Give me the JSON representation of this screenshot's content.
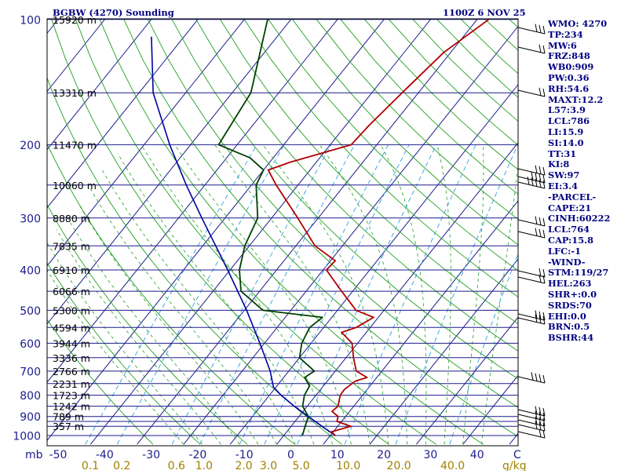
{
  "header": {
    "title": "BGBW (4270) Sounding",
    "time": "1100Z  6 NOV 25"
  },
  "sidebar": {
    "lines": [
      "WMO: 4270",
      "TP:234",
      "MW:6",
      "FRZ:848",
      "WB0:909",
      "PW:0.36",
      "RH:54.6",
      "MAXT:12.2",
      "L57:3.9",
      "LCL:786",
      "LI:15.9",
      "SI:14.0",
      "TT:31",
      "KI:8",
      "SW:97",
      "EI:3.4",
      "-PARCEL-",
      "CAPE:21",
      "CINH:60222",
      "LCL:764",
      "CAP:15.8",
      "LFC:-1",
      "-WIND-",
      "STM:119/27",
      "HEL:263",
      "SHR+:0.0",
      "SRDS:70",
      "EHI:0.0",
      "BRN:0.5",
      "BSHR:44"
    ]
  },
  "colors": {
    "isobar": "#1c1c8c",
    "isotherm": "#1c1c8c",
    "dry_adiabat": "#20a020",
    "moist_adiabat": "#20a020",
    "mixing_ratio": "#30a0e0",
    "temperature": "#b00000",
    "dewpoint": "#004000",
    "parcel": "#0000a0",
    "pressure_label": "#1c1c8c",
    "height_label": "#000000",
    "mixing_label": "#a08000",
    "wind_barb": "#000000"
  },
  "chart_data": {
    "type": "skew-t",
    "title": "BGBW (4270) Sounding",
    "pressure_levels": [
      100,
      150,
      200,
      250,
      300,
      350,
      400,
      450,
      500,
      550,
      600,
      650,
      700,
      750,
      800,
      850,
      900,
      925,
      950,
      1000
    ],
    "pressure_labels": [
      "100",
      "200",
      "300",
      "400",
      "500",
      "600",
      "700",
      "800",
      "900",
      "1000"
    ],
    "pressure_label_values": [
      100,
      200,
      300,
      400,
      500,
      600,
      700,
      800,
      900,
      1000
    ],
    "heights": [
      {
        "p": 100,
        "label": "15920 m"
      },
      {
        "p": 150,
        "label": "13310 m"
      },
      {
        "p": 200,
        "label": "11470 m"
      },
      {
        "p": 250,
        "label": "10060 m"
      },
      {
        "p": 300,
        "label": "8880 m"
      },
      {
        "p": 350,
        "label": "7835 m"
      },
      {
        "p": 400,
        "label": "6910 m"
      },
      {
        "p": 450,
        "label": "6066 m"
      },
      {
        "p": 500,
        "label": "5300 m"
      },
      {
        "p": 550,
        "label": "4594 m"
      },
      {
        "p": 600,
        "label": "3944 m"
      },
      {
        "p": 650,
        "label": "3336 m"
      },
      {
        "p": 700,
        "label": "2766 m"
      },
      {
        "p": 750,
        "label": "2231 m"
      },
      {
        "p": 800,
        "label": "1723 m"
      },
      {
        "p": 850,
        "label": "1242 m"
      },
      {
        "p": 900,
        "label": "789 m"
      },
      {
        "p": 950,
        "label": "357 m"
      }
    ],
    "temp_axis": {
      "label": "mb",
      "ticks": [
        "-50",
        "-40",
        "-30",
        "-20",
        "-10",
        "0",
        "10",
        "20",
        "30",
        "40"
      ],
      "values": [
        -50,
        -40,
        -30,
        -20,
        -10,
        0,
        10,
        20,
        30,
        40
      ],
      "unit": "C"
    },
    "mixing_axis": {
      "labels": [
        "0.1",
        "0.2",
        "0.6",
        "1.0",
        "2.0",
        "3.0",
        "5.0",
        "10.0",
        "20.0",
        "40.0"
      ],
      "values": [
        0.1,
        0.2,
        0.6,
        1.0,
        2.0,
        3.0,
        5.0,
        10.0,
        20.0,
        40.0
      ],
      "unit": "g/kg"
    },
    "temperature": [
      {
        "p": 1000,
        "t": 11.1
      },
      {
        "p": 980,
        "t": 9.6
      },
      {
        "p": 950,
        "t": 12.8
      },
      {
        "p": 925,
        "t": 9.0
      },
      {
        "p": 900,
        "t": 8.4
      },
      {
        "p": 875,
        "t": 6.2
      },
      {
        "p": 850,
        "t": 6.6
      },
      {
        "p": 800,
        "t": 5.2
      },
      {
        "p": 775,
        "t": 5.1
      },
      {
        "p": 740,
        "t": 6.0
      },
      {
        "p": 725,
        "t": 7.9
      },
      {
        "p": 700,
        "t": 4.5
      },
      {
        "p": 650,
        "t": 1.6
      },
      {
        "p": 600,
        "t": -1.2
      },
      {
        "p": 565,
        "t": -5.3
      },
      {
        "p": 550,
        "t": -3.0
      },
      {
        "p": 520,
        "t": -1.0
      },
      {
        "p": 500,
        "t": -6.0
      },
      {
        "p": 450,
        "t": -12.4
      },
      {
        "p": 400,
        "t": -19.3
      },
      {
        "p": 380,
        "t": -19.0
      },
      {
        "p": 350,
        "t": -25.9
      },
      {
        "p": 300,
        "t": -34.4
      },
      {
        "p": 250,
        "t": -44.7
      },
      {
        "p": 230,
        "t": -49.0
      },
      {
        "p": 220,
        "t": -45.5
      },
      {
        "p": 200,
        "t": -35.5
      },
      {
        "p": 180,
        "t": -35.0
      },
      {
        "p": 150,
        "t": -33.5
      },
      {
        "p": 120,
        "t": -31.5
      },
      {
        "p": 100,
        "t": -27.5
      }
    ],
    "dewpoint": [
      {
        "p": 1000,
        "t": 4.0
      },
      {
        "p": 950,
        "t": 3.0
      },
      {
        "p": 900,
        "t": 2.0
      },
      {
        "p": 850,
        "t": -1.0
      },
      {
        "p": 800,
        "t": -2.5
      },
      {
        "p": 760,
        "t": -3.0
      },
      {
        "p": 725,
        "t": -5.5
      },
      {
        "p": 700,
        "t": -4.5
      },
      {
        "p": 650,
        "t": -10.0
      },
      {
        "p": 600,
        "t": -12.0
      },
      {
        "p": 550,
        "t": -13.0
      },
      {
        "p": 520,
        "t": -12.0
      },
      {
        "p": 500,
        "t": -26.0
      },
      {
        "p": 450,
        "t": -34.0
      },
      {
        "p": 400,
        "t": -38.0
      },
      {
        "p": 350,
        "t": -41.0
      },
      {
        "p": 300,
        "t": -43.0
      },
      {
        "p": 250,
        "t": -49.0
      },
      {
        "p": 230,
        "t": -50.0
      },
      {
        "p": 215,
        "t": -55.0
      },
      {
        "p": 200,
        "t": -64.0
      },
      {
        "p": 150,
        "t": -66.0
      },
      {
        "p": 100,
        "t": -75.0
      }
    ],
    "parcel": [
      {
        "p": 1000,
        "t": 11.1
      },
      {
        "p": 950,
        "t": 6.6
      },
      {
        "p": 900,
        "t": 2.0
      },
      {
        "p": 850,
        "t": -2.8
      },
      {
        "p": 800,
        "t": -7.5
      },
      {
        "p": 764,
        "t": -10.6
      },
      {
        "p": 700,
        "t": -14.0
      },
      {
        "p": 600,
        "t": -21.0
      },
      {
        "p": 500,
        "t": -29.5
      },
      {
        "p": 400,
        "t": -40.5
      },
      {
        "p": 300,
        "t": -55.0
      },
      {
        "p": 250,
        "t": -64.0
      },
      {
        "p": 200,
        "t": -74.5
      },
      {
        "p": 150,
        "t": -87.0
      },
      {
        "p": 110,
        "t": -97.0
      }
    ]
  }
}
